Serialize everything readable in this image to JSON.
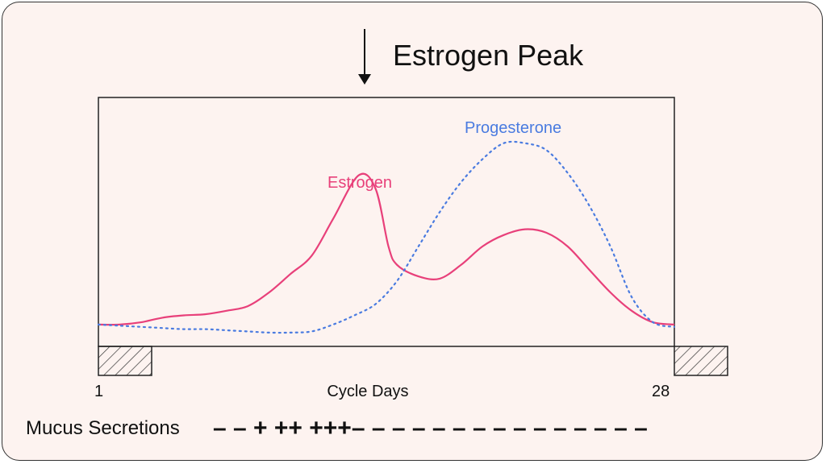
{
  "colors": {
    "background": "#fdf3f0",
    "estrogen": "#e8407a",
    "progesterone": "#4a7be0",
    "axis": "#222222"
  },
  "chart_data": {
    "type": "line",
    "title": "Estrogen Peak",
    "annotation_icon": "down-arrow-icon",
    "xlabel": "Cycle Days",
    "xlim": [
      1,
      28
    ],
    "ylim": [
      0,
      100
    ],
    "x_ticks": [
      "1",
      "28"
    ],
    "series": [
      {
        "name": "Estrogen",
        "style": "solid",
        "color": "#e8407a",
        "points": [
          [
            1,
            6
          ],
          [
            2,
            6
          ],
          [
            3,
            7
          ],
          [
            4,
            9
          ],
          [
            5,
            10
          ],
          [
            6,
            10.5
          ],
          [
            7,
            12
          ],
          [
            8,
            14
          ],
          [
            9,
            20
          ],
          [
            10,
            28
          ],
          [
            11,
            36
          ],
          [
            12,
            52
          ],
          [
            13.2,
            71
          ],
          [
            14,
            65
          ],
          [
            14.6,
            40
          ],
          [
            15,
            32
          ],
          [
            16,
            27
          ],
          [
            17,
            26
          ],
          [
            18,
            32
          ],
          [
            19,
            40
          ],
          [
            20,
            45
          ],
          [
            21,
            47.5
          ],
          [
            22,
            46
          ],
          [
            23,
            40
          ],
          [
            24,
            30
          ],
          [
            25,
            20
          ],
          [
            26,
            12
          ],
          [
            27,
            7
          ],
          [
            28,
            6
          ]
        ]
      },
      {
        "name": "Progesterone",
        "style": "dotted",
        "color": "#4a7be0",
        "points": [
          [
            1,
            6
          ],
          [
            2,
            5.5
          ],
          [
            3,
            5
          ],
          [
            4,
            4.5
          ],
          [
            5,
            4
          ],
          [
            6,
            4
          ],
          [
            7,
            3.5
          ],
          [
            8,
            3
          ],
          [
            9,
            2.5
          ],
          [
            10,
            2.5
          ],
          [
            11,
            3
          ],
          [
            12,
            6
          ],
          [
            13,
            10
          ],
          [
            14,
            15
          ],
          [
            15,
            25
          ],
          [
            16,
            40
          ],
          [
            17,
            55
          ],
          [
            18,
            68
          ],
          [
            19,
            78
          ],
          [
            20,
            85
          ],
          [
            21,
            85
          ],
          [
            22,
            82
          ],
          [
            23,
            72
          ],
          [
            24,
            58
          ],
          [
            25,
            40
          ],
          [
            26,
            18
          ],
          [
            27,
            7
          ],
          [
            28,
            5
          ]
        ]
      }
    ],
    "shaded_blocks": [
      "cycle-start-block",
      "cycle-end-block"
    ],
    "mucus": {
      "label": "Mucus Secretions",
      "symbols": "– – + ++ +++– – – – – – – – – – – – – – –"
    }
  }
}
